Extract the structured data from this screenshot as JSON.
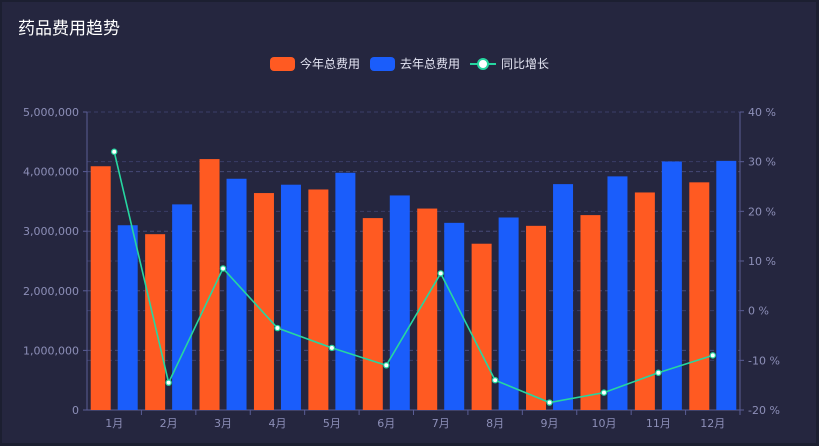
{
  "title": "药品费用趋势",
  "colors": {
    "current": "#ff5a22",
    "last": "#1a5dfb",
    "growth": "#26d6a0",
    "point": "#ffffff"
  },
  "chart_data": {
    "type": "bar",
    "categories": [
      "1月",
      "2月",
      "3月",
      "4月",
      "5月",
      "6月",
      "7月",
      "8月",
      "9月",
      "10月",
      "11月",
      "12月"
    ],
    "series": [
      {
        "name": "今年总费用",
        "values": [
          4090000,
          2950000,
          4210000,
          3640000,
          3700000,
          3220000,
          3380000,
          2790000,
          3090000,
          3270000,
          3650000,
          3820000
        ]
      },
      {
        "name": "去年总费用",
        "values": [
          3100000,
          3450000,
          3880000,
          3780000,
          3980000,
          3600000,
          3140000,
          3230000,
          3790000,
          3920000,
          4170000,
          4180000
        ]
      },
      {
        "name": "同比增长",
        "type": "line",
        "axis": "right",
        "values": [
          32,
          -14.5,
          8.5,
          -3.5,
          -7.5,
          -11,
          7.5,
          -14,
          -18.5,
          -16.5,
          -12.5,
          -9
        ]
      }
    ],
    "y_left": {
      "ylim": [
        0,
        5000000
      ],
      "ticks": [
        "0",
        "1,000,000",
        "2,000,000",
        "3,000,000",
        "4,000,000",
        "5,000,000"
      ]
    },
    "y_right": {
      "ylim": [
        -20,
        40
      ],
      "ticks": [
        "-20 %",
        "-10 %",
        "0 %",
        "10 %",
        "20 %",
        "30 %",
        "40 %"
      ]
    },
    "legend_position": "top-center",
    "grid": true
  }
}
